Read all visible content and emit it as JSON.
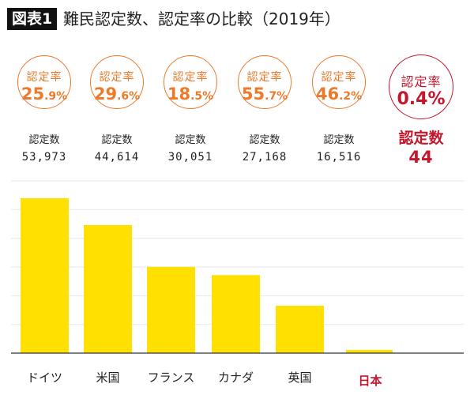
{
  "header": {
    "badge": "図表1",
    "title": "難民認定数、認定率の比較（2019年）"
  },
  "rate_label": "認定率",
  "count_label": "認定数",
  "colors": {
    "bar": "#ffe000",
    "circle": "#ec7a2a",
    "highlight": "#c4172c",
    "grid": "#e6ebf0",
    "axis": "#333333"
  },
  "chart_data": {
    "type": "bar",
    "categories": [
      "ドイツ",
      "米国",
      "フランス",
      "カナダ",
      "英国",
      "日本"
    ],
    "values": [
      53973,
      44614,
      30051,
      27168,
      16516,
      44
    ],
    "value_labels": [
      "53,973",
      "44,614",
      "30,051",
      "27,168",
      "16,516",
      "44"
    ],
    "rates": [
      {
        "int": "25",
        "dec": ".9%"
      },
      {
        "int": "29",
        "dec": ".6%"
      },
      {
        "int": "18",
        "dec": ".5%"
      },
      {
        "int": "55",
        "dec": ".7%"
      },
      {
        "int": "46",
        "dec": ".2%"
      },
      {
        "int": "0",
        "dec": ".4%"
      }
    ],
    "highlight": "日本",
    "ylim": [
      0,
      60000
    ],
    "grid_step": 10000,
    "grid": true,
    "xlabel": "",
    "ylabel": ""
  }
}
